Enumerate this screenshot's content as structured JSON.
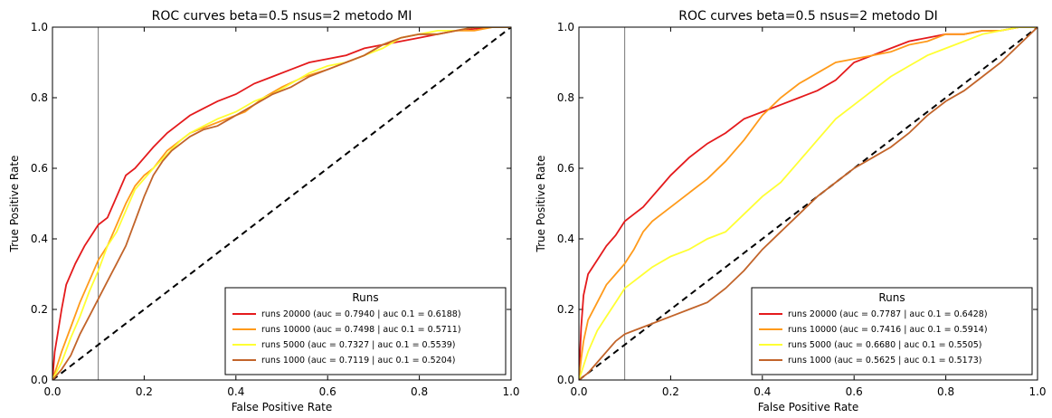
{
  "chart_data": [
    {
      "type": "line",
      "title": "ROC curves beta=0.5 nsus=2 metodo MI",
      "xlabel": "False Positive Rate",
      "ylabel": "True Positive Rate",
      "xlim": [
        0,
        1
      ],
      "ylim": [
        0,
        1
      ],
      "xticks": [
        "0.0",
        "0.2",
        "0.4",
        "0.6",
        "0.8",
        "1.0"
      ],
      "yticks": [
        "0.0",
        "0.2",
        "0.4",
        "0.6",
        "0.8",
        "1.0"
      ],
      "vline_x": 0.1,
      "legend": {
        "title": "Runs",
        "placement": "lower-right"
      },
      "series": [
        {
          "name": "runs 20000 (auc = 0.7940 | auc 0.1 = 0.6188)",
          "color": "#e41a1c",
          "x": [
            0,
            0.005,
            0.01,
            0.02,
            0.03,
            0.05,
            0.07,
            0.09,
            0.1,
            0.12,
            0.14,
            0.16,
            0.18,
            0.2,
            0.22,
            0.25,
            0.28,
            0.3,
            0.33,
            0.36,
            0.4,
            0.44,
            0.48,
            0.52,
            0.56,
            0.6,
            0.64,
            0.68,
            0.72,
            0.76,
            0.8,
            0.84,
            0.88,
            0.92,
            0.96,
            1.0
          ],
          "y": [
            0,
            0.08,
            0.12,
            0.2,
            0.27,
            0.33,
            0.38,
            0.42,
            0.44,
            0.46,
            0.52,
            0.58,
            0.6,
            0.63,
            0.66,
            0.7,
            0.73,
            0.75,
            0.77,
            0.79,
            0.81,
            0.84,
            0.86,
            0.88,
            0.9,
            0.91,
            0.92,
            0.94,
            0.95,
            0.96,
            0.97,
            0.98,
            0.99,
            0.995,
            1.0,
            1.0
          ]
        },
        {
          "name": "runs 10000 (auc = 0.7498 | auc 0.1 = 0.5711)",
          "color": "#ff9a1a",
          "x": [
            0,
            0.01,
            0.02,
            0.04,
            0.06,
            0.08,
            0.1,
            0.12,
            0.14,
            0.16,
            0.18,
            0.2,
            0.22,
            0.25,
            0.28,
            0.3,
            0.34,
            0.38,
            0.42,
            0.46,
            0.5,
            0.55,
            0.6,
            0.64,
            0.68,
            0.72,
            0.76,
            0.8,
            0.84,
            0.88,
            0.92,
            0.96,
            1.0
          ],
          "y": [
            0,
            0.04,
            0.08,
            0.15,
            0.22,
            0.28,
            0.34,
            0.38,
            0.44,
            0.5,
            0.55,
            0.58,
            0.6,
            0.65,
            0.68,
            0.7,
            0.72,
            0.74,
            0.76,
            0.8,
            0.83,
            0.86,
            0.88,
            0.9,
            0.92,
            0.95,
            0.97,
            0.98,
            0.98,
            0.99,
            0.99,
            1.0,
            1.0
          ]
        },
        {
          "name": "runs 5000 (auc = 0.7327 | auc 0.1 = 0.5539)",
          "color": "#ffff33",
          "x": [
            0,
            0.02,
            0.04,
            0.06,
            0.08,
            0.1,
            0.12,
            0.14,
            0.16,
            0.18,
            0.2,
            0.22,
            0.25,
            0.28,
            0.3,
            0.33,
            0.36,
            0.4,
            0.44,
            0.48,
            0.52,
            0.56,
            0.6,
            0.64,
            0.68,
            0.72,
            0.76,
            0.8,
            0.84,
            0.88,
            0.92,
            0.96,
            1.0
          ],
          "y": [
            0,
            0.05,
            0.12,
            0.18,
            0.25,
            0.31,
            0.38,
            0.42,
            0.48,
            0.54,
            0.57,
            0.6,
            0.64,
            0.68,
            0.7,
            0.72,
            0.74,
            0.76,
            0.79,
            0.81,
            0.84,
            0.87,
            0.89,
            0.9,
            0.92,
            0.94,
            0.97,
            0.98,
            0.99,
            0.99,
            1.0,
            1.0,
            1.0
          ]
        },
        {
          "name": "runs 1000 (auc = 0.7119 | auc 0.1 = 0.5204)",
          "color": "#c2642a",
          "x": [
            0,
            0.02,
            0.04,
            0.06,
            0.08,
            0.1,
            0.12,
            0.14,
            0.16,
            0.18,
            0.2,
            0.22,
            0.24,
            0.26,
            0.28,
            0.3,
            0.33,
            0.36,
            0.4,
            0.44,
            0.48,
            0.52,
            0.56,
            0.6,
            0.64,
            0.68,
            0.72,
            0.76,
            0.8,
            0.84,
            0.88,
            0.92,
            0.96,
            1.0
          ],
          "y": [
            0,
            0.03,
            0.07,
            0.13,
            0.18,
            0.23,
            0.28,
            0.33,
            0.38,
            0.45,
            0.52,
            0.58,
            0.62,
            0.65,
            0.67,
            0.69,
            0.71,
            0.72,
            0.75,
            0.78,
            0.81,
            0.83,
            0.86,
            0.88,
            0.9,
            0.92,
            0.95,
            0.97,
            0.98,
            0.98,
            0.99,
            1.0,
            1.0,
            1.0
          ]
        }
      ]
    },
    {
      "type": "line",
      "title": "ROC curves beta=0.5 nsus=2 metodo DI",
      "xlabel": "False Positive Rate",
      "ylabel": "True Positive Rate",
      "xlim": [
        0,
        1
      ],
      "ylim": [
        0,
        1
      ],
      "xticks": [
        "0.0",
        "0.2",
        "0.4",
        "0.6",
        "0.8",
        "1.0"
      ],
      "yticks": [
        "0.0",
        "0.2",
        "0.4",
        "0.6",
        "0.8",
        "1.0"
      ],
      "vline_x": 0.1,
      "legend": {
        "title": "Runs",
        "placement": "lower-right"
      },
      "series": [
        {
          "name": "runs 20000 (auc = 0.7787 | auc 0.1 = 0.6428)",
          "color": "#e41a1c",
          "x": [
            0,
            0.005,
            0.01,
            0.02,
            0.04,
            0.06,
            0.08,
            0.1,
            0.12,
            0.14,
            0.16,
            0.18,
            0.2,
            0.24,
            0.28,
            0.32,
            0.36,
            0.4,
            0.44,
            0.48,
            0.52,
            0.56,
            0.6,
            0.64,
            0.68,
            0.72,
            0.76,
            0.8,
            0.84,
            0.88,
            0.92,
            0.96,
            1.0
          ],
          "y": [
            0,
            0.15,
            0.24,
            0.3,
            0.34,
            0.38,
            0.41,
            0.45,
            0.47,
            0.49,
            0.52,
            0.55,
            0.58,
            0.63,
            0.67,
            0.7,
            0.74,
            0.76,
            0.78,
            0.8,
            0.82,
            0.85,
            0.9,
            0.92,
            0.94,
            0.96,
            0.97,
            0.98,
            0.98,
            0.99,
            0.99,
            1.0,
            1.0
          ]
        },
        {
          "name": "runs 10000 (auc = 0.7416 | auc 0.1 = 0.5914)",
          "color": "#ff9a1a",
          "x": [
            0,
            0.005,
            0.01,
            0.02,
            0.04,
            0.06,
            0.08,
            0.1,
            0.12,
            0.14,
            0.16,
            0.18,
            0.2,
            0.24,
            0.28,
            0.32,
            0.36,
            0.4,
            0.44,
            0.48,
            0.52,
            0.56,
            0.6,
            0.64,
            0.68,
            0.72,
            0.76,
            0.8,
            0.84,
            0.88,
            0.92,
            0.96,
            1.0
          ],
          "y": [
            0,
            0.06,
            0.11,
            0.17,
            0.22,
            0.27,
            0.3,
            0.33,
            0.37,
            0.42,
            0.45,
            0.47,
            0.49,
            0.53,
            0.57,
            0.62,
            0.68,
            0.75,
            0.8,
            0.84,
            0.87,
            0.9,
            0.91,
            0.92,
            0.93,
            0.95,
            0.96,
            0.98,
            0.98,
            0.99,
            0.99,
            1.0,
            1.0
          ]
        },
        {
          "name": "runs 5000 (auc = 0.6680 | auc 0.1 = 0.5505)",
          "color": "#ffff33",
          "x": [
            0,
            0.01,
            0.02,
            0.04,
            0.06,
            0.08,
            0.1,
            0.12,
            0.14,
            0.16,
            0.2,
            0.24,
            0.28,
            0.32,
            0.36,
            0.4,
            0.44,
            0.48,
            0.52,
            0.56,
            0.6,
            0.64,
            0.68,
            0.72,
            0.76,
            0.8,
            0.84,
            0.88,
            0.92,
            0.96,
            1.0
          ],
          "y": [
            0,
            0.04,
            0.08,
            0.14,
            0.18,
            0.22,
            0.26,
            0.28,
            0.3,
            0.32,
            0.35,
            0.37,
            0.4,
            0.42,
            0.47,
            0.52,
            0.56,
            0.62,
            0.68,
            0.74,
            0.78,
            0.82,
            0.86,
            0.89,
            0.92,
            0.94,
            0.96,
            0.98,
            0.99,
            1.0,
            1.0
          ]
        },
        {
          "name": "runs 1000 (auc = 0.5625 | auc 0.1 = 0.5173)",
          "color": "#c2642a",
          "x": [
            0,
            0.02,
            0.04,
            0.06,
            0.08,
            0.1,
            0.12,
            0.14,
            0.16,
            0.2,
            0.24,
            0.28,
            0.32,
            0.36,
            0.4,
            0.44,
            0.48,
            0.52,
            0.56,
            0.6,
            0.64,
            0.68,
            0.72,
            0.76,
            0.8,
            0.84,
            0.88,
            0.92,
            0.96,
            1.0
          ],
          "y": [
            0,
            0.02,
            0.05,
            0.08,
            0.11,
            0.13,
            0.14,
            0.15,
            0.16,
            0.18,
            0.2,
            0.22,
            0.26,
            0.31,
            0.37,
            0.42,
            0.47,
            0.52,
            0.56,
            0.6,
            0.63,
            0.66,
            0.7,
            0.75,
            0.79,
            0.82,
            0.86,
            0.9,
            0.95,
            1.0
          ]
        }
      ]
    }
  ]
}
